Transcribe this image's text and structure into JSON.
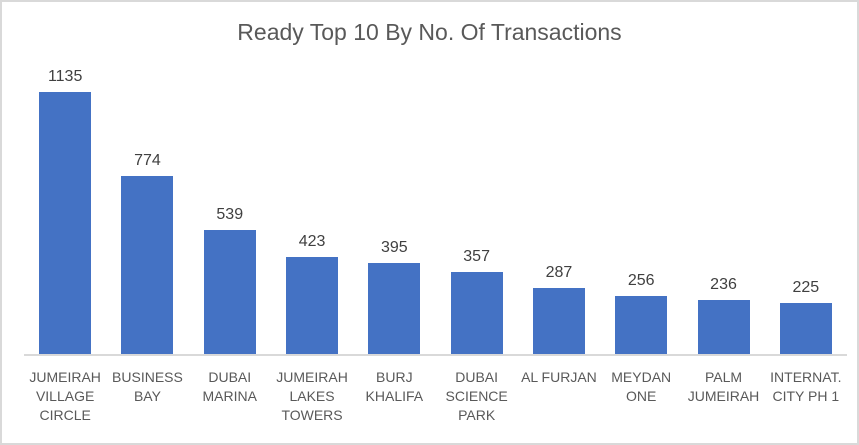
{
  "chart_data": {
    "type": "bar",
    "title": "Ready Top 10 By No. Of Transactions",
    "categories": [
      "JUMEIRAH VILLAGE CIRCLE",
      "BUSINESS BAY",
      "DUBAI MARINA",
      "JUMEIRAH LAKES TOWERS",
      "BURJ KHALIFA",
      "DUBAI SCIENCE PARK",
      "AL FURJAN",
      "MEYDAN ONE",
      "PALM JUMEIRAH",
      "INTERNAT. CITY PH 1"
    ],
    "category_label_lines": [
      [
        "JUMEIRAH",
        "VILLAGE",
        "CIRCLE"
      ],
      [
        "BUSINESS",
        "BAY"
      ],
      [
        "DUBAI",
        "MARINA"
      ],
      [
        "JUMEIRAH",
        "LAKES",
        "TOWERS"
      ],
      [
        "BURJ",
        "KHALIFA"
      ],
      [
        "DUBAI",
        "SCIENCE",
        "PARK"
      ],
      [
        "AL FURJAN"
      ],
      [
        "MEYDAN",
        "ONE"
      ],
      [
        "PALM",
        "JUMEIRAH"
      ],
      [
        "INTERNAT.",
        "CITY PH 1"
      ]
    ],
    "values": [
      1135,
      774,
      539,
      423,
      395,
      357,
      287,
      256,
      236,
      225
    ],
    "xlabel": "",
    "ylabel": "",
    "ylim": [
      0,
      1135
    ],
    "grid": false,
    "legend": "none",
    "data_labels_visible": true,
    "y_axis_visible": false,
    "colors": {
      "bar_fill": "#4472C4",
      "title_text": "#595959",
      "data_label_text": "#404040",
      "axis_label_text": "#595959",
      "axis_line": "#D9D9D9",
      "frame_border": "#D9D9D9",
      "background": "#FFFFFF"
    }
  }
}
